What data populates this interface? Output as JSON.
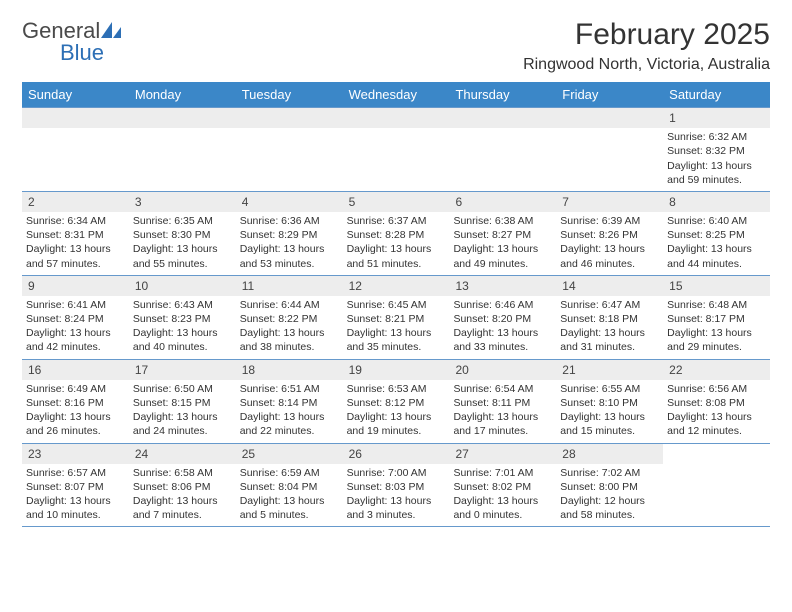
{
  "logo": {
    "text1": "General",
    "text2": "Blue"
  },
  "title": "February 2025",
  "location": "Ringwood North, Victoria, Australia",
  "colors": {
    "header_bg": "#3b87c8",
    "header_text": "#ffffff",
    "row_border": "#6699cc",
    "daynum_bg": "#ededed",
    "logo_blue": "#2d6fb5",
    "body_text": "#333333",
    "page_bg": "#ffffff"
  },
  "day_headers": [
    "Sunday",
    "Monday",
    "Tuesday",
    "Wednesday",
    "Thursday",
    "Friday",
    "Saturday"
  ],
  "weeks": [
    [
      {
        "n": "",
        "s": "",
        "e": "",
        "d": ""
      },
      {
        "n": "",
        "s": "",
        "e": "",
        "d": ""
      },
      {
        "n": "",
        "s": "",
        "e": "",
        "d": ""
      },
      {
        "n": "",
        "s": "",
        "e": "",
        "d": ""
      },
      {
        "n": "",
        "s": "",
        "e": "",
        "d": ""
      },
      {
        "n": "",
        "s": "",
        "e": "",
        "d": ""
      },
      {
        "n": "1",
        "s": "Sunrise: 6:32 AM",
        "e": "Sunset: 8:32 PM",
        "d": "Daylight: 13 hours and 59 minutes."
      }
    ],
    [
      {
        "n": "2",
        "s": "Sunrise: 6:34 AM",
        "e": "Sunset: 8:31 PM",
        "d": "Daylight: 13 hours and 57 minutes."
      },
      {
        "n": "3",
        "s": "Sunrise: 6:35 AM",
        "e": "Sunset: 8:30 PM",
        "d": "Daylight: 13 hours and 55 minutes."
      },
      {
        "n": "4",
        "s": "Sunrise: 6:36 AM",
        "e": "Sunset: 8:29 PM",
        "d": "Daylight: 13 hours and 53 minutes."
      },
      {
        "n": "5",
        "s": "Sunrise: 6:37 AM",
        "e": "Sunset: 8:28 PM",
        "d": "Daylight: 13 hours and 51 minutes."
      },
      {
        "n": "6",
        "s": "Sunrise: 6:38 AM",
        "e": "Sunset: 8:27 PM",
        "d": "Daylight: 13 hours and 49 minutes."
      },
      {
        "n": "7",
        "s": "Sunrise: 6:39 AM",
        "e": "Sunset: 8:26 PM",
        "d": "Daylight: 13 hours and 46 minutes."
      },
      {
        "n": "8",
        "s": "Sunrise: 6:40 AM",
        "e": "Sunset: 8:25 PM",
        "d": "Daylight: 13 hours and 44 minutes."
      }
    ],
    [
      {
        "n": "9",
        "s": "Sunrise: 6:41 AM",
        "e": "Sunset: 8:24 PM",
        "d": "Daylight: 13 hours and 42 minutes."
      },
      {
        "n": "10",
        "s": "Sunrise: 6:43 AM",
        "e": "Sunset: 8:23 PM",
        "d": "Daylight: 13 hours and 40 minutes."
      },
      {
        "n": "11",
        "s": "Sunrise: 6:44 AM",
        "e": "Sunset: 8:22 PM",
        "d": "Daylight: 13 hours and 38 minutes."
      },
      {
        "n": "12",
        "s": "Sunrise: 6:45 AM",
        "e": "Sunset: 8:21 PM",
        "d": "Daylight: 13 hours and 35 minutes."
      },
      {
        "n": "13",
        "s": "Sunrise: 6:46 AM",
        "e": "Sunset: 8:20 PM",
        "d": "Daylight: 13 hours and 33 minutes."
      },
      {
        "n": "14",
        "s": "Sunrise: 6:47 AM",
        "e": "Sunset: 8:18 PM",
        "d": "Daylight: 13 hours and 31 minutes."
      },
      {
        "n": "15",
        "s": "Sunrise: 6:48 AM",
        "e": "Sunset: 8:17 PM",
        "d": "Daylight: 13 hours and 29 minutes."
      }
    ],
    [
      {
        "n": "16",
        "s": "Sunrise: 6:49 AM",
        "e": "Sunset: 8:16 PM",
        "d": "Daylight: 13 hours and 26 minutes."
      },
      {
        "n": "17",
        "s": "Sunrise: 6:50 AM",
        "e": "Sunset: 8:15 PM",
        "d": "Daylight: 13 hours and 24 minutes."
      },
      {
        "n": "18",
        "s": "Sunrise: 6:51 AM",
        "e": "Sunset: 8:14 PM",
        "d": "Daylight: 13 hours and 22 minutes."
      },
      {
        "n": "19",
        "s": "Sunrise: 6:53 AM",
        "e": "Sunset: 8:12 PM",
        "d": "Daylight: 13 hours and 19 minutes."
      },
      {
        "n": "20",
        "s": "Sunrise: 6:54 AM",
        "e": "Sunset: 8:11 PM",
        "d": "Daylight: 13 hours and 17 minutes."
      },
      {
        "n": "21",
        "s": "Sunrise: 6:55 AM",
        "e": "Sunset: 8:10 PM",
        "d": "Daylight: 13 hours and 15 minutes."
      },
      {
        "n": "22",
        "s": "Sunrise: 6:56 AM",
        "e": "Sunset: 8:08 PM",
        "d": "Daylight: 13 hours and 12 minutes."
      }
    ],
    [
      {
        "n": "23",
        "s": "Sunrise: 6:57 AM",
        "e": "Sunset: 8:07 PM",
        "d": "Daylight: 13 hours and 10 minutes."
      },
      {
        "n": "24",
        "s": "Sunrise: 6:58 AM",
        "e": "Sunset: 8:06 PM",
        "d": "Daylight: 13 hours and 7 minutes."
      },
      {
        "n": "25",
        "s": "Sunrise: 6:59 AM",
        "e": "Sunset: 8:04 PM",
        "d": "Daylight: 13 hours and 5 minutes."
      },
      {
        "n": "26",
        "s": "Sunrise: 7:00 AM",
        "e": "Sunset: 8:03 PM",
        "d": "Daylight: 13 hours and 3 minutes."
      },
      {
        "n": "27",
        "s": "Sunrise: 7:01 AM",
        "e": "Sunset: 8:02 PM",
        "d": "Daylight: 13 hours and 0 minutes."
      },
      {
        "n": "28",
        "s": "Sunrise: 7:02 AM",
        "e": "Sunset: 8:00 PM",
        "d": "Daylight: 12 hours and 58 minutes."
      },
      {
        "n": "",
        "s": "",
        "e": "",
        "d": ""
      }
    ]
  ]
}
